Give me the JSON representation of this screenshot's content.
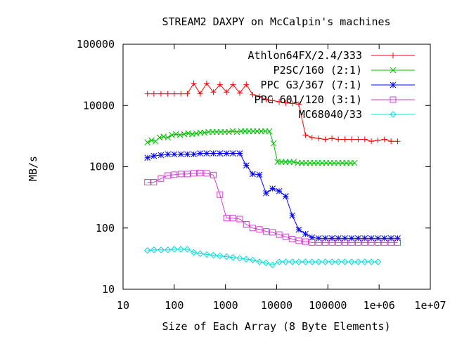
{
  "chart_data": {
    "type": "line",
    "title": "STREAM2 DAXPY on McCalpin's machines",
    "xlabel": "Size of Each Array (8 Byte Elements)",
    "ylabel": "MB/s",
    "xscale": "log",
    "yscale": "log",
    "xlim": [
      10,
      10000000
    ],
    "ylim": [
      10,
      100000
    ],
    "x_tick_labels": [
      "10",
      "100",
      "1000",
      "10000",
      "100000",
      "1e+06",
      "1e+07"
    ],
    "y_tick_labels": [
      "10",
      "100",
      "1000",
      "10000",
      "100000"
    ],
    "grid": false,
    "legend_position": "top-right",
    "series": [
      {
        "name": "Athlon64FX/2.4/333",
        "color": "#ff0000",
        "marker": "plus",
        "x": [
          30,
          40,
          55,
          75,
          100,
          135,
          180,
          240,
          320,
          430,
          580,
          780,
          1050,
          1400,
          1900,
          2550,
          3400,
          4600,
          6200,
          8300,
          11200,
          15000,
          20200,
          27000,
          36500,
          49000,
          66000,
          89000,
          120000,
          160000,
          215000,
          290000,
          390000,
          525000,
          705000,
          950000,
          1270000,
          1710000,
          2300000
        ],
        "y": [
          15500,
          15500,
          15500,
          15500,
          15500,
          15500,
          15500,
          23000,
          15500,
          23000,
          16500,
          22000,
          16500,
          22000,
          16000,
          22000,
          15000,
          14000,
          12500,
          12000,
          11500,
          11000,
          10800,
          10500,
          3300,
          3000,
          2900,
          2800,
          2900,
          2800,
          2800,
          2800,
          2800,
          2800,
          2600,
          2700,
          2800,
          2600,
          2600
        ]
      },
      {
        "name": "P2SC/160 (2:1)",
        "color": "#00c000",
        "marker": "cross",
        "x": [
          30,
          36,
          43,
          52,
          62,
          75,
          90,
          108,
          130,
          156,
          187,
          224,
          269,
          323,
          388,
          466,
          560,
          672,
          806,
          968,
          1160,
          1390,
          1670,
          2010,
          2410,
          2890,
          3470,
          4160,
          5000,
          6000,
          7200,
          8640,
          10400,
          12400,
          14900,
          17900,
          21500,
          25800,
          31000,
          37100,
          44600,
          53500,
          64200,
          77000,
          92500,
          111000,
          133000,
          160000,
          192000,
          230000,
          276000,
          331000
        ],
        "y": [
          2500,
          2700,
          2600,
          3000,
          3100,
          3000,
          3300,
          3400,
          3300,
          3400,
          3500,
          3400,
          3500,
          3600,
          3600,
          3700,
          3700,
          3700,
          3700,
          3700,
          3700,
          3800,
          3700,
          3800,
          3800,
          3800,
          3800,
          3800,
          3800,
          3800,
          3800,
          2400,
          1200,
          1200,
          1200,
          1200,
          1200,
          1150,
          1150,
          1150,
          1150,
          1150,
          1150,
          1150,
          1150,
          1150,
          1150,
          1150,
          1150,
          1150,
          1150,
          1150
        ]
      },
      {
        "name": "PPC G3/367 (7:1)",
        "color": "#0000ff",
        "marker": "star",
        "x": [
          30,
          40,
          55,
          75,
          100,
          135,
          180,
          240,
          320,
          430,
          580,
          780,
          1050,
          1400,
          1900,
          2550,
          3400,
          4600,
          6200,
          8300,
          11200,
          15000,
          20200,
          27000,
          36500,
          49000,
          66000,
          89000,
          120000,
          160000,
          215000,
          290000,
          390000,
          525000,
          705000,
          950000,
          1270000,
          1710000,
          2300000
        ],
        "y": [
          1400,
          1500,
          1550,
          1600,
          1600,
          1600,
          1600,
          1600,
          1650,
          1650,
          1650,
          1650,
          1650,
          1650,
          1650,
          1050,
          760,
          740,
          370,
          440,
          400,
          330,
          160,
          94,
          80,
          70,
          68,
          68,
          68,
          68,
          68,
          68,
          68,
          68,
          68,
          68,
          68,
          68,
          68
        ]
      },
      {
        "name": "PPC 601/120 (3:1)",
        "color": "#d040d0",
        "marker": "square",
        "x": [
          30,
          40,
          55,
          75,
          100,
          135,
          180,
          240,
          320,
          430,
          580,
          780,
          1050,
          1400,
          1900,
          2550,
          3400,
          4600,
          6200,
          8300,
          11200,
          15000,
          20200,
          27000,
          36500,
          49000,
          66000,
          89000,
          120000,
          160000,
          215000,
          290000,
          390000,
          525000,
          705000,
          950000,
          1270000,
          1710000,
          2300000
        ],
        "y": [
          560,
          560,
          640,
          720,
          740,
          760,
          760,
          780,
          790,
          780,
          730,
          350,
          145,
          145,
          140,
          115,
          100,
          95,
          88,
          85,
          78,
          72,
          66,
          62,
          60,
          58,
          58,
          58,
          58,
          58,
          58,
          58,
          58,
          58,
          58,
          58,
          58,
          58,
          58
        ]
      },
      {
        "name": "MC68040/33",
        "color": "#00e0e0",
        "marker": "diamond",
        "x": [
          30,
          40,
          55,
          75,
          100,
          135,
          180,
          240,
          320,
          430,
          580,
          780,
          1050,
          1400,
          1900,
          2550,
          3400,
          4600,
          6200,
          8300,
          11200,
          15000,
          20200,
          27000,
          36500,
          49000,
          66000,
          89000,
          120000,
          160000,
          215000,
          290000,
          390000,
          525000,
          705000,
          950000
        ],
        "y": [
          43,
          44,
          44,
          44,
          45,
          45,
          45,
          40,
          38,
          37,
          36,
          35,
          34,
          33,
          32,
          31,
          30,
          28,
          27,
          25,
          28,
          28,
          28,
          28,
          28,
          28,
          28,
          28,
          28,
          28,
          28,
          28,
          28,
          28,
          28,
          28
        ]
      }
    ]
  }
}
